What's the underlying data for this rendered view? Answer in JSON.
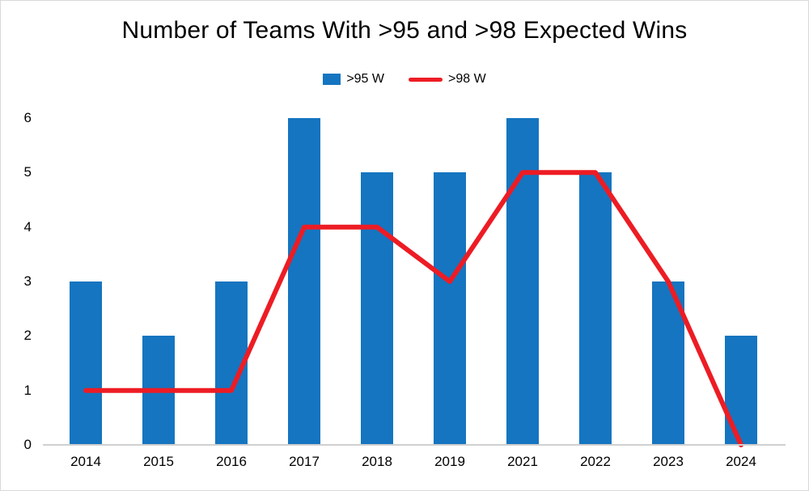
{
  "chart_data": {
    "type": "bar",
    "subtype": "combo-bar-line",
    "title": "Number of Teams With >95 and >98 Expected Wins",
    "categories": [
      "2014",
      "2015",
      "2016",
      "2017",
      "2018",
      "2019",
      "2021",
      "2022",
      "2023",
      "2024"
    ],
    "series": [
      {
        "name": ">95 W",
        "type": "bar",
        "color": "#1575c0",
        "values": [
          3,
          2,
          3,
          6,
          5,
          5,
          6,
          5,
          3,
          2
        ]
      },
      {
        "name": ">98 W",
        "type": "line",
        "color": "#ed1c24",
        "values": [
          1,
          1,
          1,
          4,
          4,
          3,
          5,
          5,
          3,
          0
        ]
      }
    ],
    "xlabel": "",
    "ylabel": "",
    "ylim": [
      0,
      6
    ],
    "ytick_step": 1,
    "grid": false,
    "legend_position": "top"
  }
}
